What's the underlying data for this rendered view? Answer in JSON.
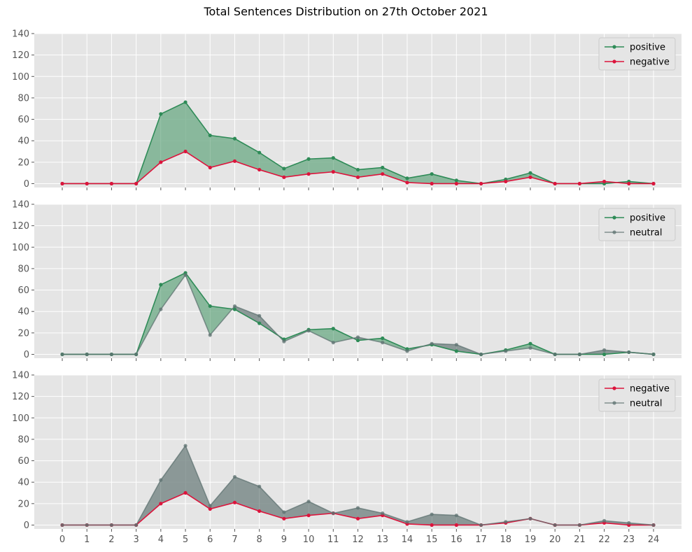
{
  "chart_data": {
    "title": "Total Sentences Distribution on 27th October 2021",
    "type": "line",
    "x": [
      0,
      1,
      2,
      3,
      4,
      5,
      6,
      7,
      8,
      9,
      10,
      11,
      12,
      13,
      14,
      15,
      16,
      17,
      18,
      19,
      20,
      21,
      22,
      23,
      24
    ],
    "xticks": [
      "0",
      "1",
      "2",
      "3",
      "4",
      "5",
      "6",
      "7",
      "8",
      "9",
      "10",
      "11",
      "12",
      "13",
      "14",
      "15",
      "16",
      "17",
      "18",
      "19",
      "20",
      "21",
      "22",
      "23",
      "24"
    ],
    "ylim": [
      0,
      140
    ],
    "yticks": [
      0,
      20,
      40,
      60,
      80,
      100,
      120,
      140
    ],
    "grid": true,
    "legend_placement": "upper-right",
    "colors": {
      "positive": "#2e8b57",
      "negative": "#dc143c",
      "neutral": "#5f7371",
      "positive_fill": "#79b08f",
      "neutral_fill": "#7b8b89"
    },
    "panels": [
      {
        "series": [
          {
            "name": "positive",
            "color": "#2e8b57",
            "values": [
              0,
              0,
              0,
              0,
              65,
              76,
              45,
              42,
              29,
              14,
              23,
              24,
              13,
              15,
              5,
              9,
              3,
              0,
              4,
              10,
              0,
              0,
              0,
              2,
              0
            ]
          },
          {
            "name": "negative",
            "color": "#dc143c",
            "values": [
              0,
              0,
              0,
              0,
              20,
              30,
              15,
              21,
              13,
              6,
              9,
              11,
              6,
              9,
              1,
              0,
              0,
              0,
              2,
              6,
              0,
              0,
              2,
              0,
              0
            ]
          }
        ]
      },
      {
        "series": [
          {
            "name": "positive",
            "color": "#2e8b57",
            "values": [
              0,
              0,
              0,
              0,
              65,
              76,
              45,
              42,
              29,
              14,
              23,
              24,
              13,
              15,
              5,
              9,
              3,
              0,
              4,
              10,
              0,
              0,
              0,
              2,
              0
            ]
          },
          {
            "name": "neutral",
            "color": "#5f7371",
            "values": [
              0,
              0,
              0,
              0,
              42,
              74,
              18,
              45,
              36,
              12,
              22,
              11,
              16,
              11,
              3,
              10,
              9,
              0,
              3,
              6,
              0,
              0,
              4,
              2,
              0
            ]
          }
        ]
      },
      {
        "series": [
          {
            "name": "negative",
            "color": "#dc143c",
            "values": [
              0,
              0,
              0,
              0,
              20,
              30,
              15,
              21,
              13,
              6,
              9,
              11,
              6,
              9,
              1,
              0,
              0,
              0,
              2,
              6,
              0,
              0,
              2,
              0,
              0
            ]
          },
          {
            "name": "neutral",
            "color": "#5f7371",
            "values": [
              0,
              0,
              0,
              0,
              42,
              74,
              18,
              45,
              36,
              12,
              22,
              11,
              16,
              11,
              3,
              10,
              9,
              0,
              3,
              6,
              0,
              0,
              4,
              2,
              0
            ]
          }
        ]
      }
    ]
  }
}
